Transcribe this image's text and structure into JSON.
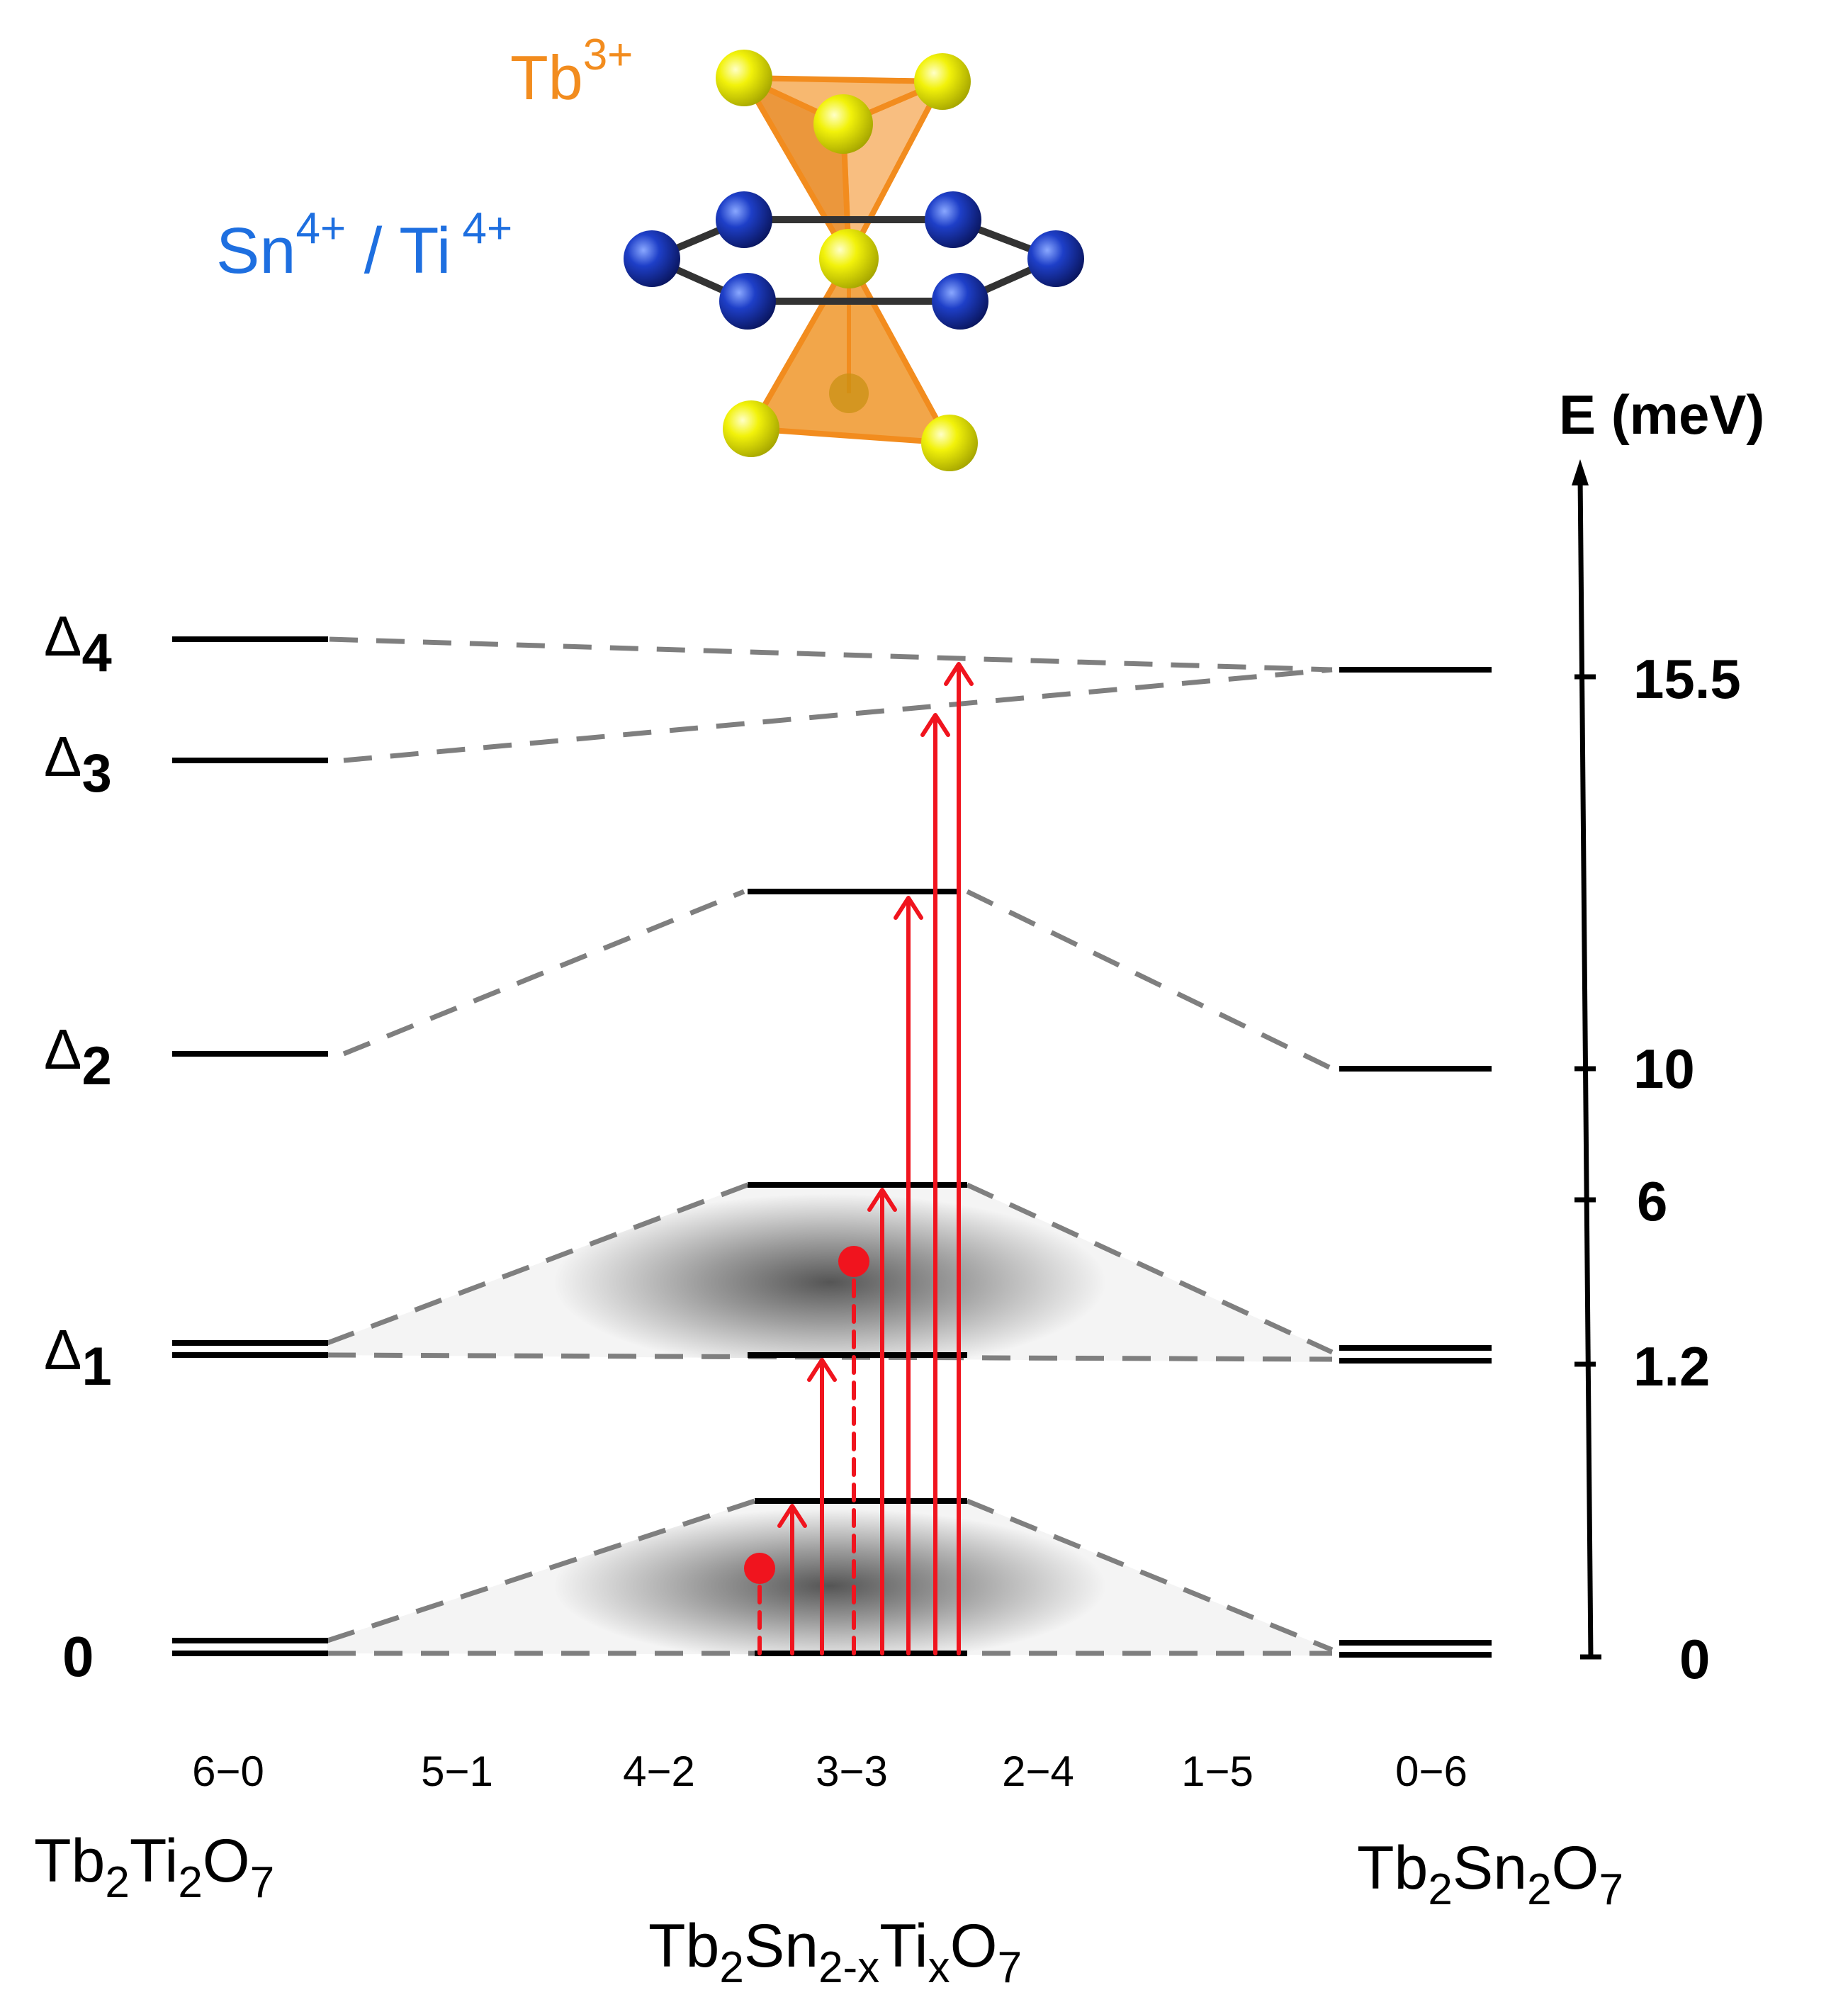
{
  "ions": {
    "tb_label": "Tb",
    "tb_charge": "3+",
    "sn_label": "Sn",
    "sn_charge": "4+",
    "slash": " / ",
    "ti_label": "Ti",
    "ti_charge": "4+"
  },
  "axis": {
    "title": "E (meV)",
    "ticks": [
      "15.5",
      "10",
      "6",
      "1.2",
      "0"
    ]
  },
  "levels": {
    "d4": {
      "symbol": "Δ",
      "sub": "4"
    },
    "d3": {
      "symbol": "Δ",
      "sub": "3"
    },
    "d2": {
      "symbol": "Δ",
      "sub": "2"
    },
    "d1": {
      "symbol": "Δ",
      "sub": "1"
    },
    "zero": "0"
  },
  "compositions": [
    "6−0",
    "5−1",
    "4−2",
    "3−3",
    "2−4",
    "1−5",
    "0−6"
  ],
  "formulas": {
    "left": {
      "a": "Tb",
      "a_sub": "2",
      "b": "Ti",
      "b_sub": "2",
      "c": "O",
      "c_sub": "7"
    },
    "right": {
      "a": "Tb",
      "a_sub": "2",
      "b": "Sn",
      "b_sub": "2",
      "c": "O",
      "c_sub": "7"
    },
    "middle": {
      "a": "Tb",
      "a_sub": "2",
      "b": "Sn",
      "b_sub": "2-x",
      "c": "Ti",
      "c_sub": "x",
      "d": "O",
      "d_sub": "7"
    }
  },
  "colors": {
    "tb": "#F28C1E",
    "sn_ti": "#1E6FE0",
    "arrow": "#F0141E",
    "dashed": "#7f7f7f",
    "level": "#000000",
    "yellow_atom": "#F2F20A",
    "blue_atom": "#1E3FC8"
  }
}
